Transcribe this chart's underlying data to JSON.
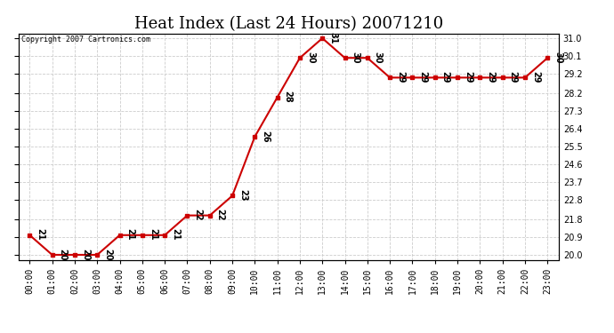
{
  "title": "Heat Index (Last 24 Hours) 20071210",
  "copyright": "Copyright 2007 Cartronics.com",
  "hours": [
    "00:00",
    "01:00",
    "02:00",
    "03:00",
    "04:00",
    "05:00",
    "06:00",
    "07:00",
    "08:00",
    "09:00",
    "10:00",
    "11:00",
    "12:00",
    "13:00",
    "14:00",
    "15:00",
    "16:00",
    "17:00",
    "18:00",
    "19:00",
    "20:00",
    "21:00",
    "22:00",
    "23:00"
  ],
  "values": [
    21,
    20,
    20,
    20,
    21,
    21,
    21,
    22,
    22,
    23,
    26,
    28,
    30,
    31,
    30,
    30,
    29,
    29,
    29,
    29,
    29,
    29,
    29,
    30
  ],
  "ylim": [
    19.75,
    31.25
  ],
  "yticks": [
    20.0,
    20.9,
    21.8,
    22.8,
    23.7,
    24.6,
    25.5,
    26.4,
    27.3,
    28.2,
    29.2,
    30.1,
    31.0
  ],
  "line_color": "#cc0000",
  "marker_color": "#cc0000",
  "bg_color": "#ffffff",
  "grid_color": "#cccccc",
  "title_fontsize": 13,
  "label_fontsize": 7,
  "annotation_fontsize": 7,
  "copyright_fontsize": 6
}
